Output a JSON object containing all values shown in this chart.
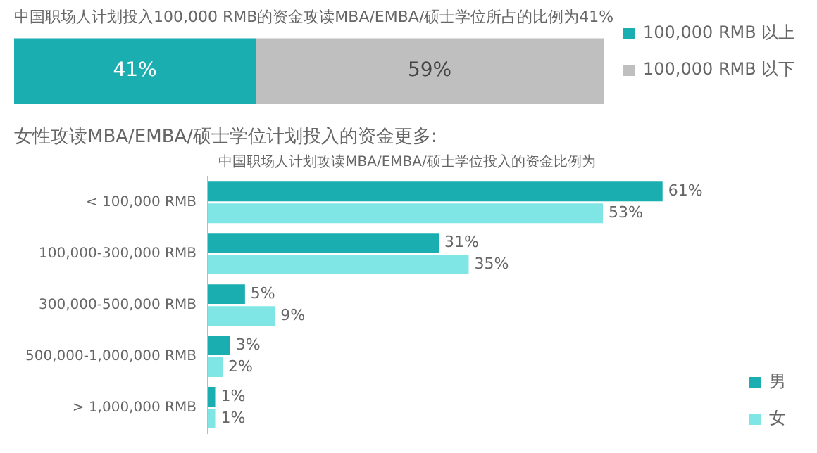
{
  "chart_data": [
    {
      "type": "bar",
      "orientation": "horizontal",
      "stacked": true,
      "title": "中国职场人计划投入100,000 RMB的资金攻读MBA/EMBA/硕士学位所占的比例为41%",
      "categories": [
        null
      ],
      "xlim": [
        0,
        100
      ],
      "tick_labels": false,
      "grid": false,
      "legend": "right",
      "series": [
        {
          "name": "100,000 RMB 以上",
          "color": "#1aaeb0",
          "values": [
            41
          ],
          "value_labels": [
            "41%"
          ]
        },
        {
          "name": "100,000 RMB 以下",
          "color": "#bfbfbf",
          "values": [
            59
          ],
          "value_labels": [
            "59%"
          ]
        }
      ]
    },
    {
      "type": "bar",
      "orientation": "horizontal",
      "title": "女性攻读MBA/EMBA/硕士学位计划投入的资金更多:",
      "subtitle": "中国职场人计划攻读MBA/EMBA/硕士学位投入的资金比例为",
      "categories": [
        "< 100,000 RMB",
        "100,000-300,000 RMB",
        "300,000-500,000 RMB",
        "500,000-1,000,000 RMB",
        "> 1,000,000 RMB"
      ],
      "tick_labels": "y",
      "grid": false,
      "legend": "bottom right",
      "series": [
        {
          "name": "男",
          "color": "#1aaeb0",
          "values": [
            61,
            31,
            5,
            3,
            1
          ],
          "value_labels": [
            "61%",
            "31%",
            "5%",
            "3%",
            "1%"
          ]
        },
        {
          "name": "女",
          "color": "#80e5e5",
          "values": [
            53,
            35,
            9,
            2,
            1
          ],
          "value_labels": [
            "53%",
            "35%",
            "9%",
            "2%",
            "1%"
          ]
        }
      ]
    }
  ]
}
